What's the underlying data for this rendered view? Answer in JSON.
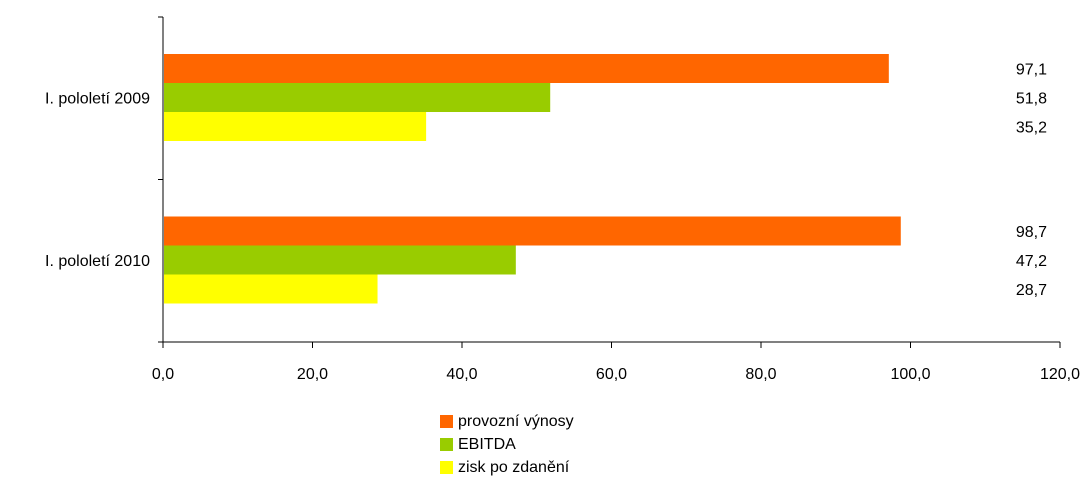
{
  "chart_data": {
    "type": "bar",
    "orientation": "horizontal",
    "categories": [
      "I. pololetí 2009",
      "I. pololetí 2010"
    ],
    "series": [
      {
        "name": "provozní výnosy",
        "color": "#ff6600",
        "values": [
          97.1,
          98.7
        ],
        "labels": [
          "97,1",
          "98,7"
        ]
      },
      {
        "name": "EBITDA",
        "color": "#99cc00",
        "values": [
          51.8,
          47.2
        ],
        "labels": [
          "51,8",
          "47,2"
        ]
      },
      {
        "name": "zisk po zdanění",
        "color": "#ffff00",
        "values": [
          35.2,
          28.7
        ],
        "labels": [
          "35,2",
          "28,7"
        ]
      }
    ],
    "xlim": [
      0,
      120
    ],
    "xticks": [
      0,
      20,
      40,
      60,
      80,
      100,
      120
    ],
    "xtick_labels": [
      "0,0",
      "20,0",
      "40,0",
      "60,0",
      "80,0",
      "100,0",
      "120,0"
    ],
    "grid": false,
    "legend_position": "bottom"
  }
}
